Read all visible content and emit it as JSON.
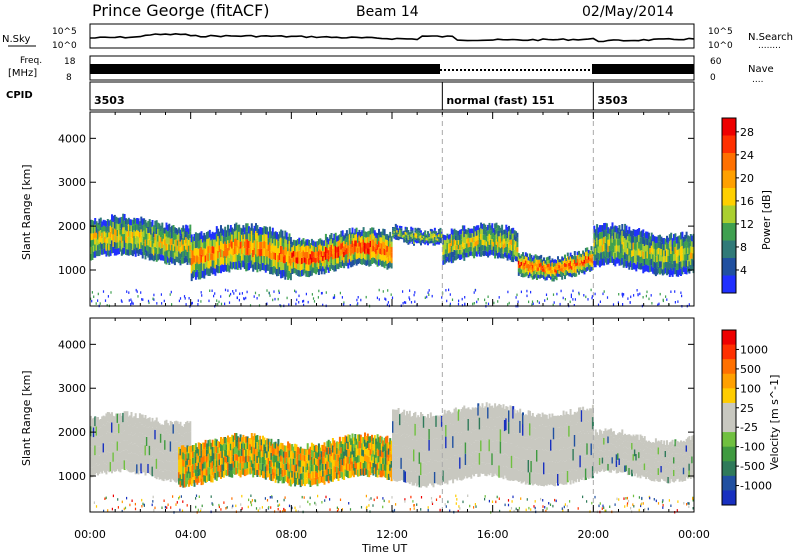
{
  "header": {
    "station": "Prince George (fitACF)",
    "beam": "Beam 14",
    "date": "02/May/2014"
  },
  "strips": {
    "nsky_label": "N.Sky",
    "nsky_ticks": [
      "10^5",
      "10^0"
    ],
    "nsky_right_ticks": [
      "10^5",
      "10^0"
    ],
    "nsearch_label": "N.Search",
    "nsearch_dots": "........",
    "freq_label_1": "Freq.",
    "freq_label_2": "[MHz]",
    "freq_ticks": [
      "18",
      "8"
    ],
    "nave_ticks": [
      "60",
      "0"
    ],
    "nave_label": "Nave",
    "nave_dots": "....",
    "cpid_label": "CPID",
    "cpid_segments": [
      {
        "label": "3503",
        "start_hour": 0,
        "end_hour": 14
      },
      {
        "label": "normal (fast) 151",
        "start_hour": 14,
        "end_hour": 20
      },
      {
        "label": "3503",
        "start_hour": 20,
        "end_hour": 24
      }
    ]
  },
  "chart_data": [
    {
      "type": "heatmap",
      "name": "power",
      "ylabel": "Slant Range [km]",
      "xlabel": "Time UT",
      "xlim_hours": [
        0,
        24
      ],
      "ylim_km": [
        180,
        4600
      ],
      "yticks": [
        1000,
        2000,
        3000,
        4000
      ],
      "colorbar_label": "Power [dB]",
      "colorbar_ticks": [
        "4",
        "8",
        "12",
        "16",
        "20",
        "24",
        "28"
      ],
      "colorbar_colors": [
        "#2030ff",
        "#2050a0",
        "#307a78",
        "#3fa050",
        "#aad030",
        "#ffd000",
        "#ffa000",
        "#ff7000",
        "#ff3000",
        "#ee0000"
      ],
      "bands": [
        {
          "t0": 0,
          "t1": 4,
          "r0": 1250,
          "r1": 2100,
          "level": 0.55
        },
        {
          "t0": 4,
          "t1": 8,
          "r0": 900,
          "r1": 1900,
          "level": 0.7
        },
        {
          "t0": 8,
          "t1": 12,
          "r0": 1000,
          "r1": 1800,
          "level": 0.85
        },
        {
          "t0": 12,
          "t1": 14,
          "r0": 1700,
          "r1": 2000,
          "level": 0.4
        },
        {
          "t0": 14,
          "t1": 17,
          "r0": 1200,
          "r1": 1900,
          "level": 0.5
        },
        {
          "t0": 17,
          "t1": 20,
          "r0": 900,
          "r1": 1400,
          "level": 0.8
        },
        {
          "t0": 20,
          "t1": 24,
          "r0": 1000,
          "r1": 1900,
          "level": 0.45
        }
      ]
    },
    {
      "type": "heatmap",
      "name": "velocity",
      "ylabel": "Slant Range [km]",
      "xlabel": "Time UT",
      "xlim_hours": [
        0,
        24
      ],
      "ylim_km": [
        180,
        4600
      ],
      "yticks": [
        1000,
        2000,
        3000,
        4000
      ],
      "xticks": [
        "00:00",
        "04:00",
        "08:00",
        "12:00",
        "16:00",
        "20:00",
        "00:00"
      ],
      "colorbar_label": "Velocity [m s^-1]",
      "colorbar_ticks": [
        "1000",
        "500",
        "100",
        "25",
        "-25",
        "-100",
        "-500",
        "-1000"
      ],
      "colorbar_colors": [
        "#1830c0",
        "#2050a0",
        "#2f7a5a",
        "#3f9a40",
        "#70c040",
        "#c8c8c0",
        "#c8c8c0",
        "#ffcc00",
        "#ffa000",
        "#ff7000",
        "#ff3000",
        "#ee0000"
      ],
      "bands": [
        {
          "t0": 0,
          "t1": 4,
          "r0": 1000,
          "r1": 2300,
          "kind": "ground"
        },
        {
          "t0": 3.5,
          "t1": 12,
          "r0": 900,
          "r1": 1800,
          "kind": "flow"
        },
        {
          "t0": 12,
          "t1": 20,
          "r0": 900,
          "r1": 2500,
          "kind": "ground"
        },
        {
          "t0": 20,
          "t1": 24,
          "r0": 1000,
          "r1": 1900,
          "kind": "ground"
        }
      ]
    }
  ]
}
